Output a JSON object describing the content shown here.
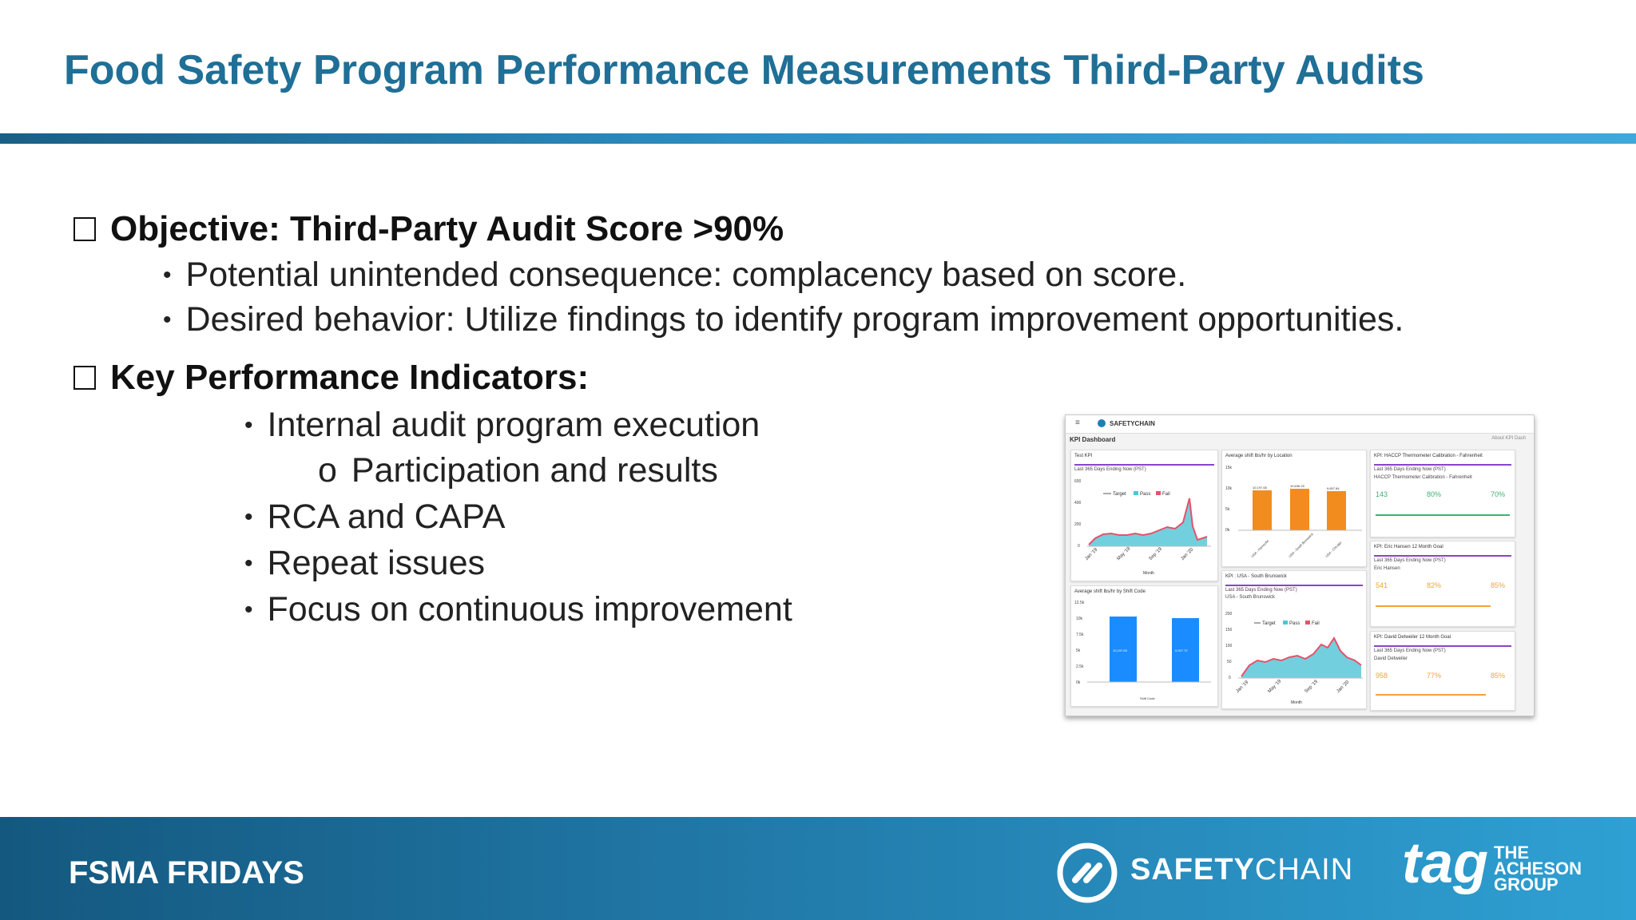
{
  "title": "Food Safety Program Performance Measurements Third-Party Audits",
  "sections": [
    {
      "heading": "Objective: Third-Party Audit Score >90%",
      "bullets": [
        "Potential unintended consequence: complacency based on score.",
        "Desired behavior: Utilize findings to identify program improvement opportunities."
      ]
    },
    {
      "heading": "Key Performance Indicators:",
      "bullets": [
        "Internal audit program execution",
        "Participation and results",
        "RCA and CAPA",
        "Repeat issues",
        "Focus on continuous improvement"
      ]
    }
  ],
  "dashboard": {
    "brand": "SAFETYCHAIN",
    "page_title": "KPI Dashboard",
    "about": "About KPI Dash",
    "panels": {
      "test_kpi": {
        "title": "Test KPI",
        "subtitle": "Last 365 Days Ending Now (PST)",
        "legend": [
          "Target",
          "Pass",
          "Fail"
        ],
        "xlabel": "Month",
        "yticks": [
          "600",
          "400",
          "200",
          "0"
        ],
        "xticks": [
          "Jan '19",
          "May '19",
          "Sep '19",
          "Jan '20"
        ]
      },
      "avg_location": {
        "title": "Average shift lbs/hr by Location",
        "yticks": [
          "15k",
          "10k",
          "5k",
          "0k"
        ],
        "values": [
          "10,197.65",
          "10,636.25",
          "9,657.84"
        ],
        "categories": [
          "USA - Harrisville",
          "USA - South Brunswick",
          "USA - Chicago"
        ]
      },
      "haccp": {
        "title": "KPI: HACCP Thermometer Calibration - Fahrenheit",
        "subtitle": "Last 365 Days Ending Now (PST)",
        "name": "HACCP Thermometer Calibration - Fahrenheit",
        "records": "143",
        "pass": "80%",
        "target": "70%"
      },
      "eric": {
        "title": "KPI: Eric Hansen 12 Month Goal",
        "subtitle": "Last 365 Days Ending Now (PST)",
        "name": "Eric Hansen",
        "records": "541",
        "pass": "82%",
        "target": "85%"
      },
      "avg_shift": {
        "title": "Average shift lbs/hr by Shift Code",
        "yticks": [
          "12.5k",
          "10k",
          "7.5k",
          "5k",
          "2.5k",
          "0k"
        ],
        "values": [
          "10,197.63",
          "9,927.72"
        ],
        "xlabel": "Shift Code"
      },
      "south_brunswick": {
        "title": "KPI : USA - South Brunswick",
        "subtitle": "Last 365 Days Ending Now (PST)",
        "name": "USA - South Brunswick",
        "legend": [
          "Target",
          "Pass",
          "Fail"
        ],
        "yticks": [
          "200",
          "150",
          "100",
          "50",
          "0"
        ],
        "xticks": [
          "Jan '19",
          "May '19",
          "Sep '19",
          "Jan '20"
        ],
        "xlabel": "Month"
      },
      "david": {
        "title": "KPI: David Detweiler 12 Month Goal",
        "subtitle": "Last 365 Days Ending Now (PST)",
        "name": "David Detweiler",
        "records": "958",
        "pass": "77%",
        "target": "85%"
      }
    }
  },
  "footer": {
    "label": "FSMA FRIDAYS",
    "safetychain_bold": "SAFETY",
    "safetychain_thin": "CHAIN",
    "tag": "tag",
    "acheson": [
      "THE",
      "ACHESON",
      "GROUP"
    ]
  },
  "colors": {
    "title": "#1f6f96",
    "bar_orange": "#f28c1e",
    "bar_blue": "#1a8cff",
    "area_cyan": "#4fc4d6",
    "fail_red": "#e8506a"
  }
}
